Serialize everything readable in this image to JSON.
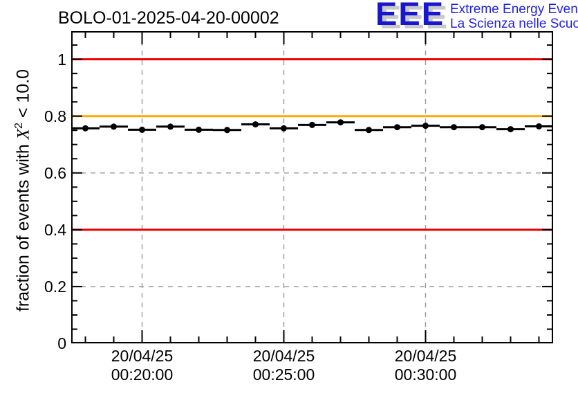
{
  "header": {
    "title": "BOLO-01-2025-04-20-00002"
  },
  "logo": {
    "acronym": "EEE",
    "line1": "Extreme Energy Events",
    "line2": "La Scienza nelle Scuole",
    "acronym_color": "#1717cc",
    "shadow_color": "#c8c8c8",
    "text_color": "#2222dd"
  },
  "chart_data": {
    "type": "scatter",
    "title": "BOLO-01-2025-04-20-00002",
    "ylabel": "fraction of events with X^2 < 10.0",
    "ylabel_prefix": "fraction of events with ",
    "ylabel_math": "X",
    "ylabel_sup": "2",
    "ylabel_suffix": " < 10.0",
    "xlabel": "",
    "grid": true,
    "grid_style": "dashed",
    "legend": "none",
    "y_axis": {
      "min": 0,
      "max": 1.099,
      "minor_step": 0.05,
      "major_ticks": [
        {
          "value": 1,
          "label": "1"
        },
        {
          "value": 0.8,
          "label": "0.8"
        },
        {
          "value": 0.6,
          "label": "0.6"
        },
        {
          "value": 0.4,
          "label": "0.4"
        },
        {
          "value": 0.2,
          "label": "0.2"
        },
        {
          "value": 0,
          "label": "0"
        }
      ]
    },
    "x_axis": {
      "min_minutes": 17.5,
      "max_minutes": 34.5,
      "minor_step": 1,
      "major_ticks": [
        {
          "minute": 20,
          "label_line1": "20/04/25",
          "label_line2": "00:20:00"
        },
        {
          "minute": 25,
          "label_line1": "20/04/25",
          "label_line2": "00:25:00"
        },
        {
          "minute": 30,
          "label_line1": "20/04/25",
          "label_line2": "00:30:00"
        }
      ]
    },
    "reference_lines": [
      {
        "value": 1.0,
        "color": "#ee0000"
      },
      {
        "value": 0.8,
        "color": "#ffaa00"
      },
      {
        "value": 0.4,
        "color": "#ee0000"
      }
    ],
    "colors": {
      "grid": "#999999",
      "frame": "#000000",
      "marker": "#000000"
    },
    "series": [
      {
        "name": "fraction of events with X^2 < 10.0 per minute bin",
        "marker": "filled-circle",
        "color": "#000000",
        "bin_half_width_minutes": 0.5,
        "points": [
          {
            "time": "00:18:00",
            "minute": 18,
            "value": 0.757
          },
          {
            "time": "00:19:00",
            "minute": 19,
            "value": 0.763
          },
          {
            "time": "00:20:00",
            "minute": 20,
            "value": 0.752
          },
          {
            "time": "00:21:00",
            "minute": 21,
            "value": 0.763
          },
          {
            "time": "00:22:00",
            "minute": 22,
            "value": 0.752
          },
          {
            "time": "00:23:00",
            "minute": 23,
            "value": 0.751
          },
          {
            "time": "00:24:00",
            "minute": 24,
            "value": 0.771
          },
          {
            "time": "00:25:00",
            "minute": 25,
            "value": 0.757
          },
          {
            "time": "00:26:00",
            "minute": 26,
            "value": 0.769
          },
          {
            "time": "00:27:00",
            "minute": 27,
            "value": 0.778
          },
          {
            "time": "00:28:00",
            "minute": 28,
            "value": 0.751
          },
          {
            "time": "00:29:00",
            "minute": 29,
            "value": 0.761
          },
          {
            "time": "00:30:00",
            "minute": 30,
            "value": 0.766
          },
          {
            "time": "00:31:00",
            "minute": 31,
            "value": 0.761
          },
          {
            "time": "00:32:00",
            "minute": 32,
            "value": 0.761
          },
          {
            "time": "00:33:00",
            "minute": 33,
            "value": 0.754
          },
          {
            "time": "00:34:00",
            "minute": 34,
            "value": 0.764
          }
        ]
      }
    ]
  }
}
